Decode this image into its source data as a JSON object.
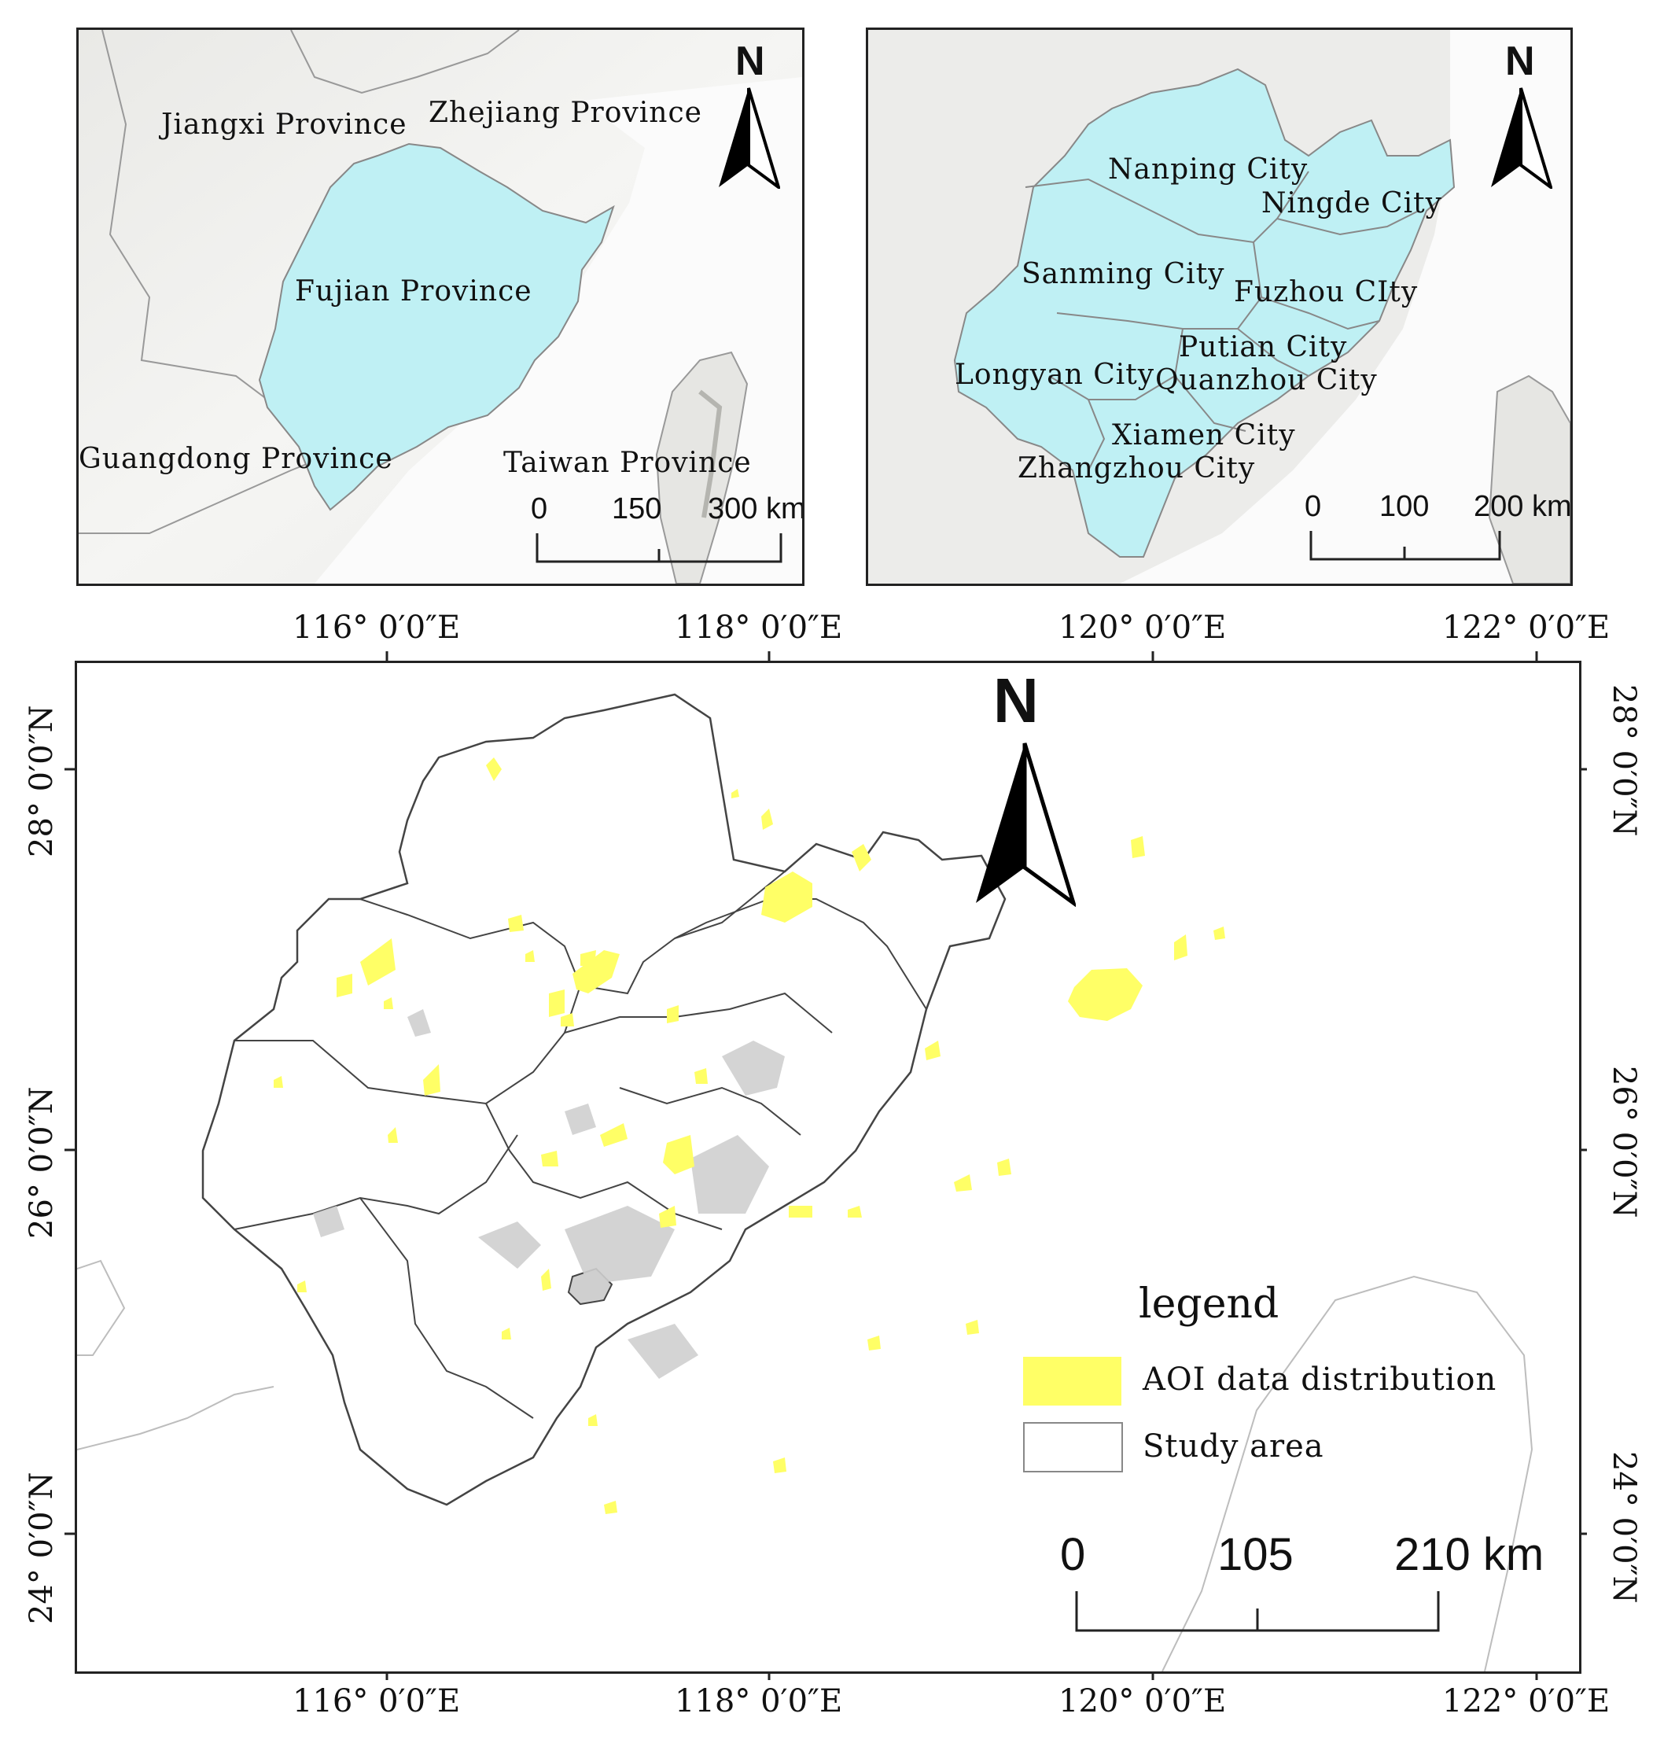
{
  "inset_left": {
    "labels": {
      "jiangxi": "Jiangxi Province",
      "zhejiang": "Zhejiang Province",
      "fujian": "Fujian Province",
      "guangdong": "Guangdong Province",
      "taiwan": "Taiwan Province"
    },
    "north": "N",
    "scale": [
      "0",
      "150",
      "300 km"
    ],
    "fill_color": "#bff0f4"
  },
  "inset_right": {
    "cities": {
      "nanping": "Nanping City",
      "ningde": "Ningde City",
      "sanming": "Sanming City",
      "fuzhou": "Fuzhou CIty",
      "putian": "Putian City",
      "longyan": "Longyan City",
      "quanzhou": "Quanzhou City",
      "xiamen": "Xiamen City",
      "zhangzhou": "Zhangzhou City"
    },
    "north": "N",
    "scale": [
      "0",
      "100",
      "200 km"
    ],
    "fill_color": "#bff0f4"
  },
  "main_map": {
    "lon_labels": [
      "116° 0′0″E",
      "118° 0′0″E",
      "120° 0′0″E",
      "122° 0′0″E"
    ],
    "lat_labels": [
      "28° 0′0″N",
      "26° 0′0″N",
      "24° 0′0″N"
    ],
    "north": "N",
    "scale": [
      "0",
      "105",
      "210 km"
    ],
    "legend": {
      "title": "legend",
      "items": [
        {
          "label": "AOI data distribution",
          "color": "#ffff66"
        },
        {
          "label": "Study area",
          "color": "#ffffff"
        }
      ]
    }
  }
}
